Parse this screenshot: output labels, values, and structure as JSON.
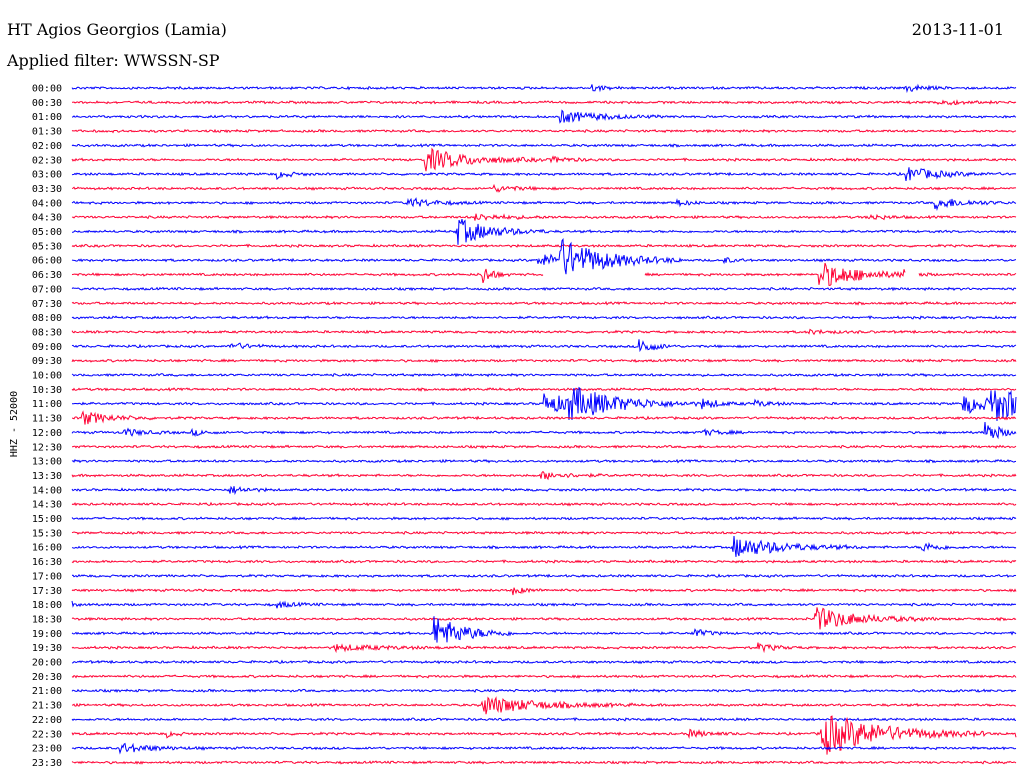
{
  "header": {
    "station": "HT Agios Georgios (Lamia)",
    "filter": "Applied filter: WWSSN-SP",
    "date": "2013-11-01"
  },
  "chart_data": {
    "type": "line",
    "title": "HT Agios Georgios (Lamia)",
    "subtitle": "Applied filter: WWSSN-SP",
    "date": "2013-11-01",
    "ylabel": "HHZ - 52000",
    "row_colors": [
      "#0000ff",
      "#ff0033"
    ],
    "tick_labels": [
      "00:00",
      "00:30",
      "01:00",
      "01:30",
      "02:00",
      "02:30",
      "03:00",
      "03:30",
      "04:00",
      "04:30",
      "05:00",
      "05:30",
      "06:00",
      "06:30",
      "07:00",
      "07:30",
      "08:00",
      "08:30",
      "09:00",
      "09:30",
      "10:00",
      "10:30",
      "11:00",
      "11:30",
      "12:00",
      "12:30",
      "13:00",
      "13:30",
      "14:00",
      "14:30",
      "15:00",
      "15:30",
      "16:00",
      "16:30",
      "17:00",
      "17:30",
      "18:00",
      "18:30",
      "19:00",
      "19:30",
      "20:00",
      "20:30",
      "21:00",
      "21:30",
      "22:00",
      "22:30",
      "23:00",
      "23:30"
    ],
    "trace_minutes": 30,
    "events": [
      {
        "row": 0,
        "minute": 16.5,
        "amp": 4,
        "dur": 0.3
      },
      {
        "row": 0,
        "minute": 26.5,
        "amp": 4,
        "dur": 0.5
      },
      {
        "row": 1,
        "minute": 27.5,
        "amp": 3,
        "dur": 0.6
      },
      {
        "row": 2,
        "minute": 15.5,
        "amp": 6,
        "dur": 1.2
      },
      {
        "row": 5,
        "minute": 11.2,
        "amp": 12,
        "dur": 1.3
      },
      {
        "row": 5,
        "minute": 15.2,
        "amp": 3,
        "dur": 0.6
      },
      {
        "row": 6,
        "minute": 6.5,
        "amp": 4,
        "dur": 0.4
      },
      {
        "row": 6,
        "minute": 26.5,
        "amp": 7,
        "dur": 1.0
      },
      {
        "row": 7,
        "minute": 13.4,
        "amp": 3,
        "dur": 0.7
      },
      {
        "row": 8,
        "minute": 10.6,
        "amp": 5,
        "dur": 0.8
      },
      {
        "row": 8,
        "minute": 19.2,
        "amp": 3,
        "dur": 0.4
      },
      {
        "row": 8,
        "minute": 27.4,
        "amp": 6,
        "dur": 0.9
      },
      {
        "row": 9,
        "minute": 12.8,
        "amp": 3,
        "dur": 1.0
      },
      {
        "row": 9,
        "minute": 25.3,
        "amp": 3,
        "dur": 0.5
      },
      {
        "row": 10,
        "minute": 12.2,
        "amp": 14,
        "dur": 1.0
      },
      {
        "row": 12,
        "minute": 14.8,
        "amp": 6,
        "dur": 1.5
      },
      {
        "row": 12,
        "minute": 15.5,
        "amp": 18,
        "dur": 1.3
      },
      {
        "row": 12,
        "minute": 20.7,
        "amp": 3,
        "dur": 0.3
      },
      {
        "row": 13,
        "minute": 13.0,
        "amp": 12,
        "dur": 0.3
      },
      {
        "row": 13,
        "minute": 23.7,
        "amp": 14,
        "dur": 1.2
      },
      {
        "row": 13,
        "minute": 26.4,
        "amp": 8,
        "dur": 0.2
      },
      {
        "row": 17,
        "minute": 23.4,
        "amp": 2,
        "dur": 0.6
      },
      {
        "row": 18,
        "minute": 5.0,
        "amp": 4,
        "dur": 0.5
      },
      {
        "row": 18,
        "minute": 18.0,
        "amp": 10,
        "dur": 0.4
      },
      {
        "row": 22,
        "minute": 15.0,
        "amp": 10,
        "dur": 1.2
      },
      {
        "row": 22,
        "minute": 15.7,
        "amp": 14,
        "dur": 1.6
      },
      {
        "row": 22,
        "minute": 20.0,
        "amp": 4,
        "dur": 0.6
      },
      {
        "row": 22,
        "minute": 21.7,
        "amp": 3,
        "dur": 0.5
      },
      {
        "row": 22,
        "minute": 29.2,
        "amp": 16,
        "dur": 1.5
      },
      {
        "row": 22,
        "minute": 28.3,
        "amp": 10,
        "dur": 1.0
      },
      {
        "row": 23,
        "minute": 0.3,
        "amp": 7,
        "dur": 0.8
      },
      {
        "row": 24,
        "minute": 1.6,
        "amp": 4,
        "dur": 0.6
      },
      {
        "row": 24,
        "minute": 3.8,
        "amp": 3,
        "dur": 0.4
      },
      {
        "row": 24,
        "minute": 20.0,
        "amp": 3,
        "dur": 0.6
      },
      {
        "row": 24,
        "minute": 29.0,
        "amp": 14,
        "dur": 0.4
      },
      {
        "row": 27,
        "minute": 14.9,
        "amp": 4,
        "dur": 0.8
      },
      {
        "row": 28,
        "minute": 5.0,
        "amp": 4,
        "dur": 0.5
      },
      {
        "row": 32,
        "minute": 21.0,
        "amp": 11,
        "dur": 1.4
      },
      {
        "row": 32,
        "minute": 27.0,
        "amp": 5,
        "dur": 0.5
      },
      {
        "row": 35,
        "minute": 14.0,
        "amp": 4,
        "dur": 0.4
      },
      {
        "row": 36,
        "minute": 0.0,
        "amp": 4,
        "dur": 0.2
      },
      {
        "row": 36,
        "minute": 6.5,
        "amp": 3,
        "dur": 0.5
      },
      {
        "row": 37,
        "minute": 23.6,
        "amp": 12,
        "dur": 1.3
      },
      {
        "row": 38,
        "minute": 11.5,
        "amp": 18,
        "dur": 0.9
      },
      {
        "row": 38,
        "minute": 19.7,
        "amp": 5,
        "dur": 0.4
      },
      {
        "row": 39,
        "minute": 8.3,
        "amp": 3,
        "dur": 1.5
      },
      {
        "row": 39,
        "minute": 21.8,
        "amp": 4,
        "dur": 0.5
      },
      {
        "row": 43,
        "minute": 13.0,
        "amp": 10,
        "dur": 1.6
      },
      {
        "row": 45,
        "minute": 3.0,
        "amp": 3,
        "dur": 0.3
      },
      {
        "row": 45,
        "minute": 19.5,
        "amp": 4,
        "dur": 0.6
      },
      {
        "row": 45,
        "minute": 23.8,
        "amp": 22,
        "dur": 1.8
      },
      {
        "row": 45,
        "minute": 30.0,
        "amp": 4,
        "dur": 0.4
      },
      {
        "row": 46,
        "minute": 1.5,
        "amp": 5,
        "dur": 0.9
      }
    ],
    "gaps": [
      {
        "row": 13,
        "from": 15.0,
        "to": 18.2
      },
      {
        "row": 13,
        "from": 26.5,
        "to": 26.9
      }
    ]
  }
}
